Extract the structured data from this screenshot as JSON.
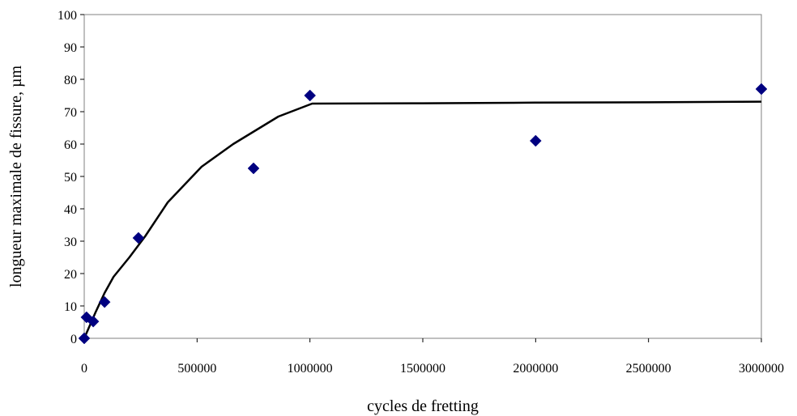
{
  "chart_data": {
    "type": "scatter",
    "xlabel": "cycles de fretting",
    "ylabel": "longueur maximale de fissure, µm",
    "xlim": [
      0,
      3000000
    ],
    "ylim": [
      0,
      100
    ],
    "x_ticks": [
      0,
      500000,
      1000000,
      1500000,
      2000000,
      2500000,
      3000000
    ],
    "x_tick_labels": [
      "0",
      "500000",
      "1000000",
      "1500000",
      "2000000",
      "2500000",
      "3000000"
    ],
    "y_ticks": [
      0,
      10,
      20,
      30,
      40,
      50,
      60,
      70,
      80,
      90,
      100
    ],
    "y_tick_labels": [
      "0",
      "10",
      "20",
      "30",
      "40",
      "50",
      "60",
      "70",
      "80",
      "90",
      "100"
    ],
    "grid": false,
    "series": [
      {
        "type": "scatter",
        "marker": "diamond",
        "color": "#000080",
        "points": [
          {
            "x": 0,
            "y": 0
          },
          {
            "x": 10000,
            "y": 6.5
          },
          {
            "x": 40000,
            "y": 5.2
          },
          {
            "x": 90000,
            "y": 11.2
          },
          {
            "x": 240000,
            "y": 31
          },
          {
            "x": 750000,
            "y": 52.5
          },
          {
            "x": 1000000,
            "y": 75
          },
          {
            "x": 2000000,
            "y": 61
          },
          {
            "x": 3000000,
            "y": 77
          }
        ]
      },
      {
        "type": "line",
        "color": "#000000",
        "points": [
          {
            "x": 0,
            "y": 0
          },
          {
            "x": 50000,
            "y": 8
          },
          {
            "x": 90000,
            "y": 14
          },
          {
            "x": 130000,
            "y": 19
          },
          {
            "x": 200000,
            "y": 25
          },
          {
            "x": 270000,
            "y": 31.5
          },
          {
            "x": 370000,
            "y": 42
          },
          {
            "x": 520000,
            "y": 53
          },
          {
            "x": 660000,
            "y": 60
          },
          {
            "x": 860000,
            "y": 68.5
          },
          {
            "x": 1010000,
            "y": 72.5
          },
          {
            "x": 1500000,
            "y": 72.6
          },
          {
            "x": 2000000,
            "y": 72.8
          },
          {
            "x": 2500000,
            "y": 72.9
          },
          {
            "x": 3000000,
            "y": 73.1
          }
        ]
      }
    ]
  }
}
